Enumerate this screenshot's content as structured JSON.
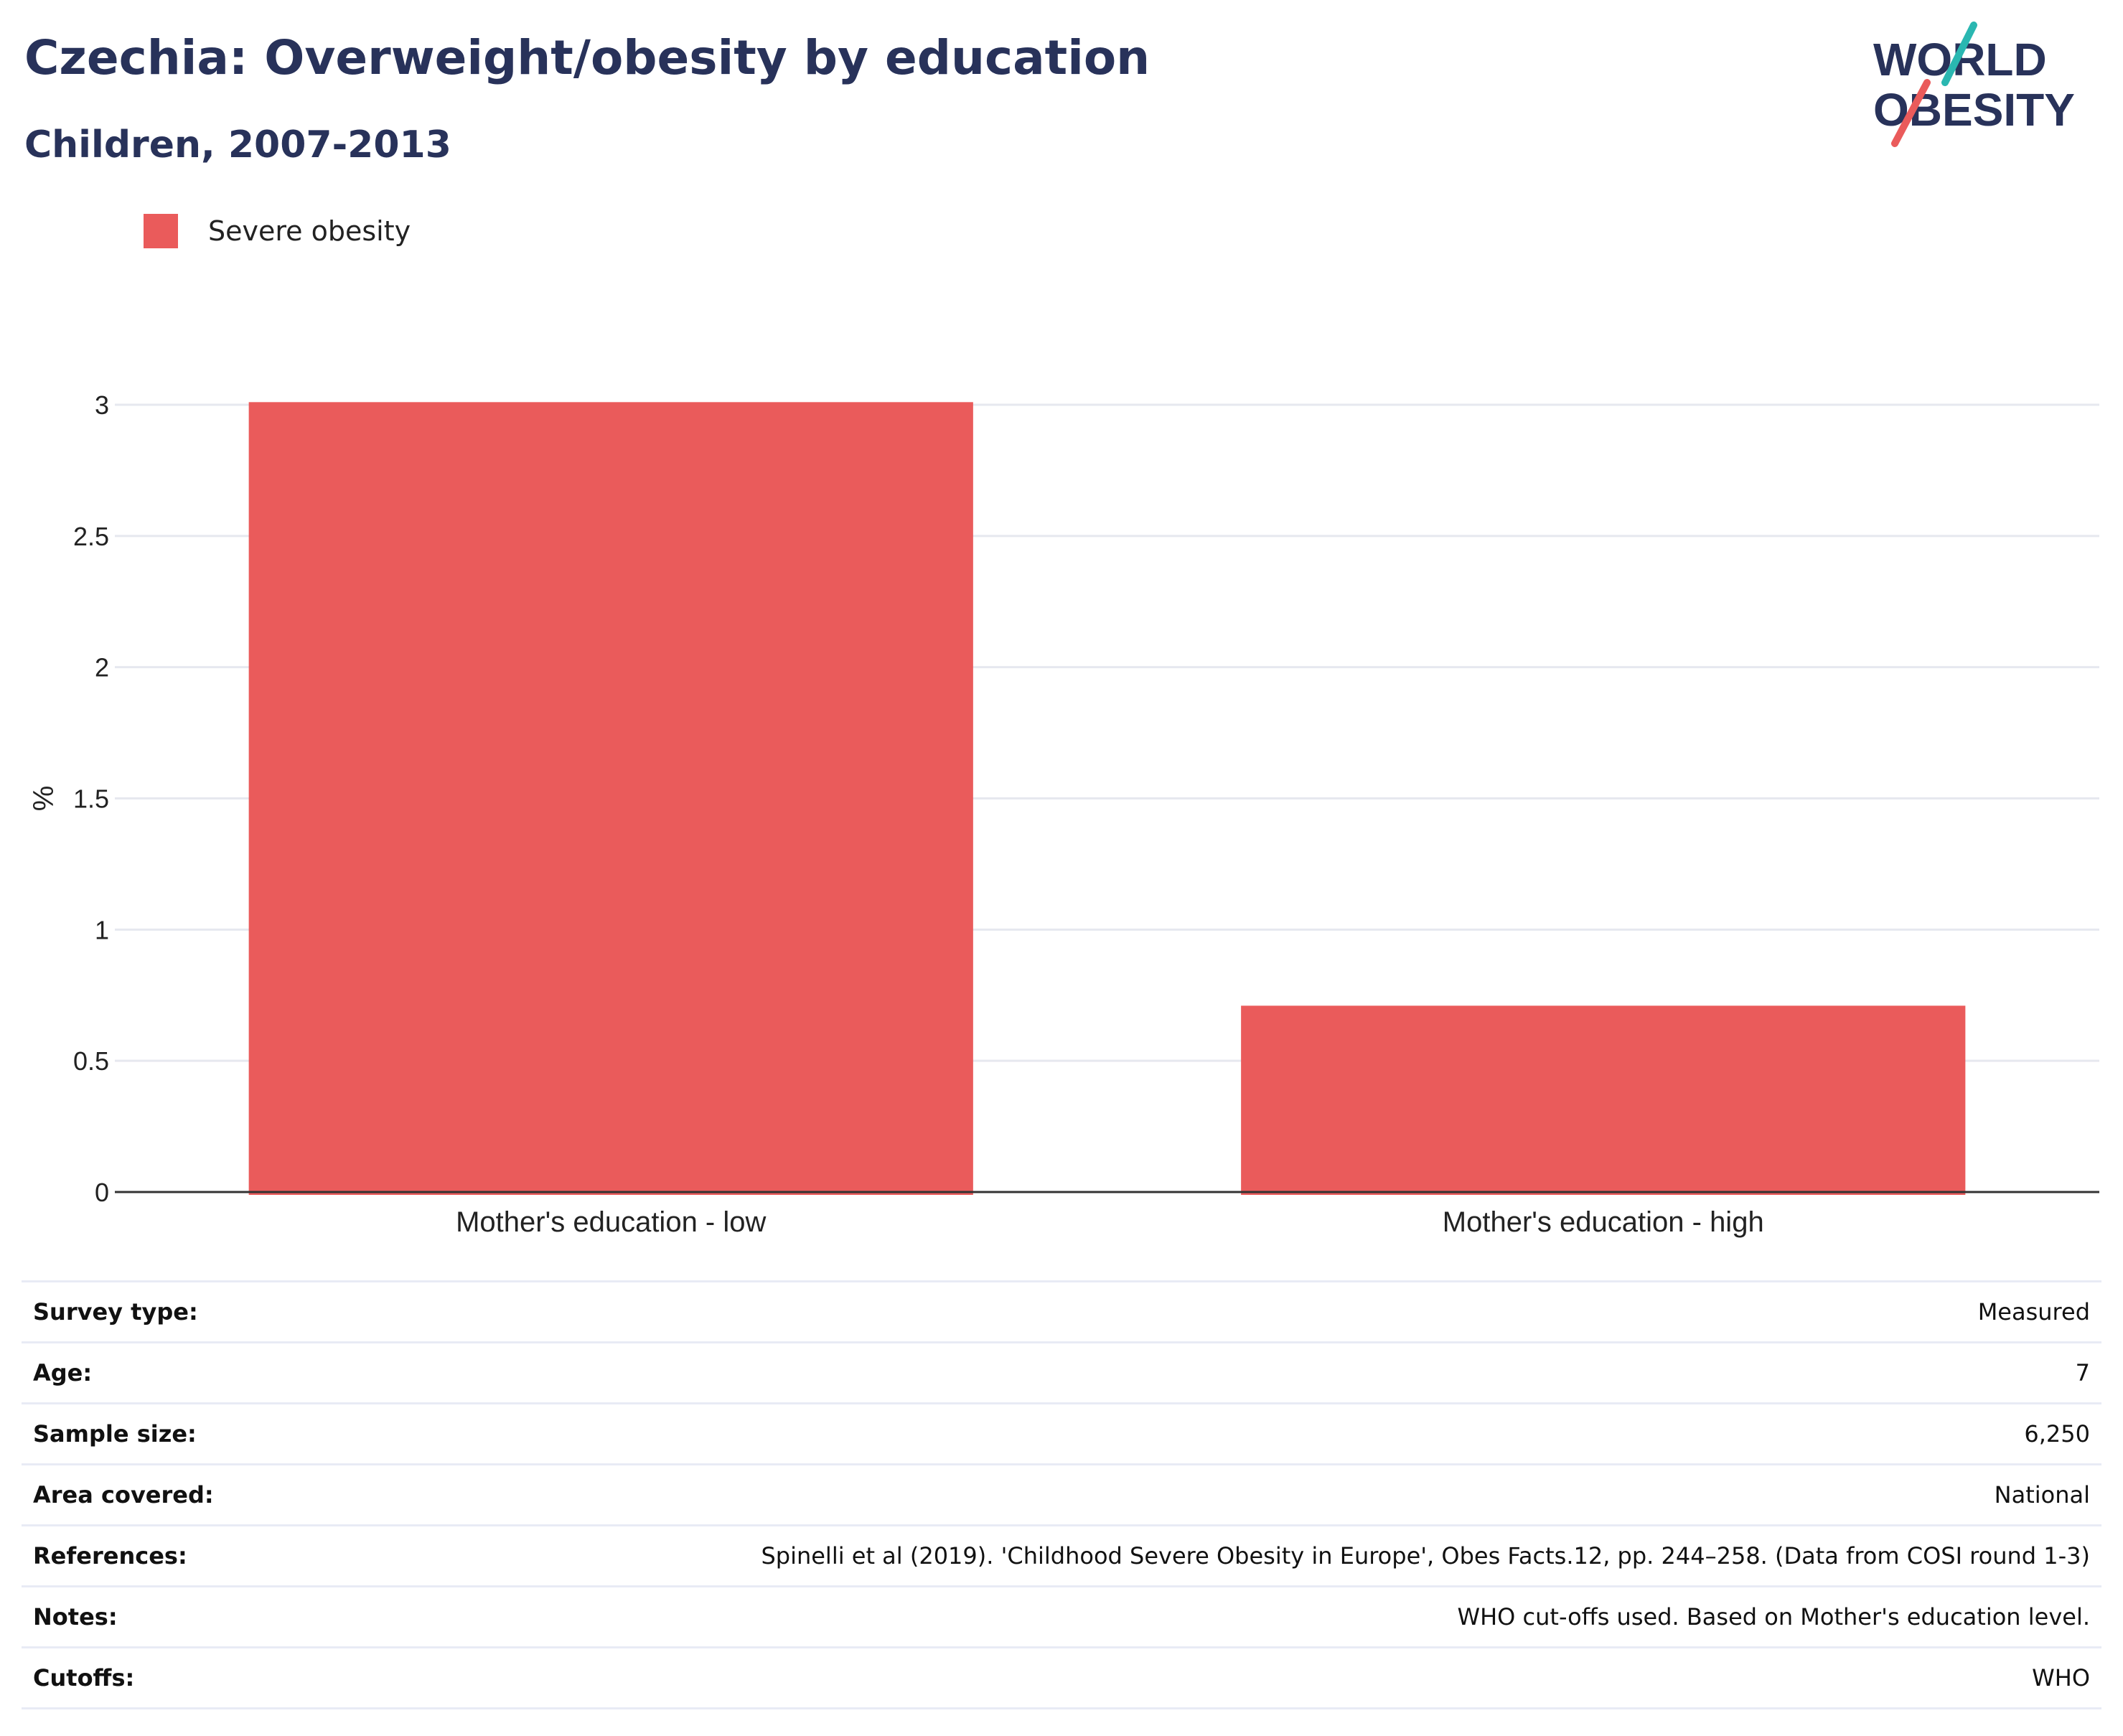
{
  "header": {
    "title": "Czechia: Overweight/obesity by education",
    "subtitle": "Children, 2007-2013"
  },
  "logo": {
    "line1": "WORLD",
    "line2": "OBESITY",
    "color_text": "#28325a",
    "color_accent1": "#2ab7b1",
    "color_accent2": "#ea5b5b"
  },
  "chart_data": {
    "type": "bar",
    "categories": [
      "Mother's education - low",
      "Mother's education - high"
    ],
    "series": [
      {
        "name": "Severe obesity",
        "values": [
          3.01,
          0.71
        ],
        "color": "#ea5b5b"
      }
    ],
    "ylabel": "%",
    "xlabel": "",
    "ylim": [
      0,
      3.0
    ],
    "yticks": [
      0,
      0.5,
      1,
      1.5,
      2,
      2.5,
      3
    ],
    "ytick_labels": [
      "0",
      "0.5",
      "1",
      "1.5",
      "2",
      "2.5",
      "3"
    ],
    "grid": true,
    "legend": "top-left"
  },
  "info": [
    {
      "label": "Survey type:",
      "value": "Measured"
    },
    {
      "label": "Age:",
      "value": "7"
    },
    {
      "label": "Sample size:",
      "value": "6,250"
    },
    {
      "label": "Area covered:",
      "value": "National"
    },
    {
      "label": "References:",
      "value": "Spinelli et al (2019). 'Childhood Severe Obesity in Europe', Obes Facts.12, pp. 244–258. (Data from COSI round 1-3)"
    },
    {
      "label": "Notes:",
      "value": "WHO cut-offs used. Based on Mother's education level."
    },
    {
      "label": "Cutoffs:",
      "value": "WHO"
    }
  ]
}
